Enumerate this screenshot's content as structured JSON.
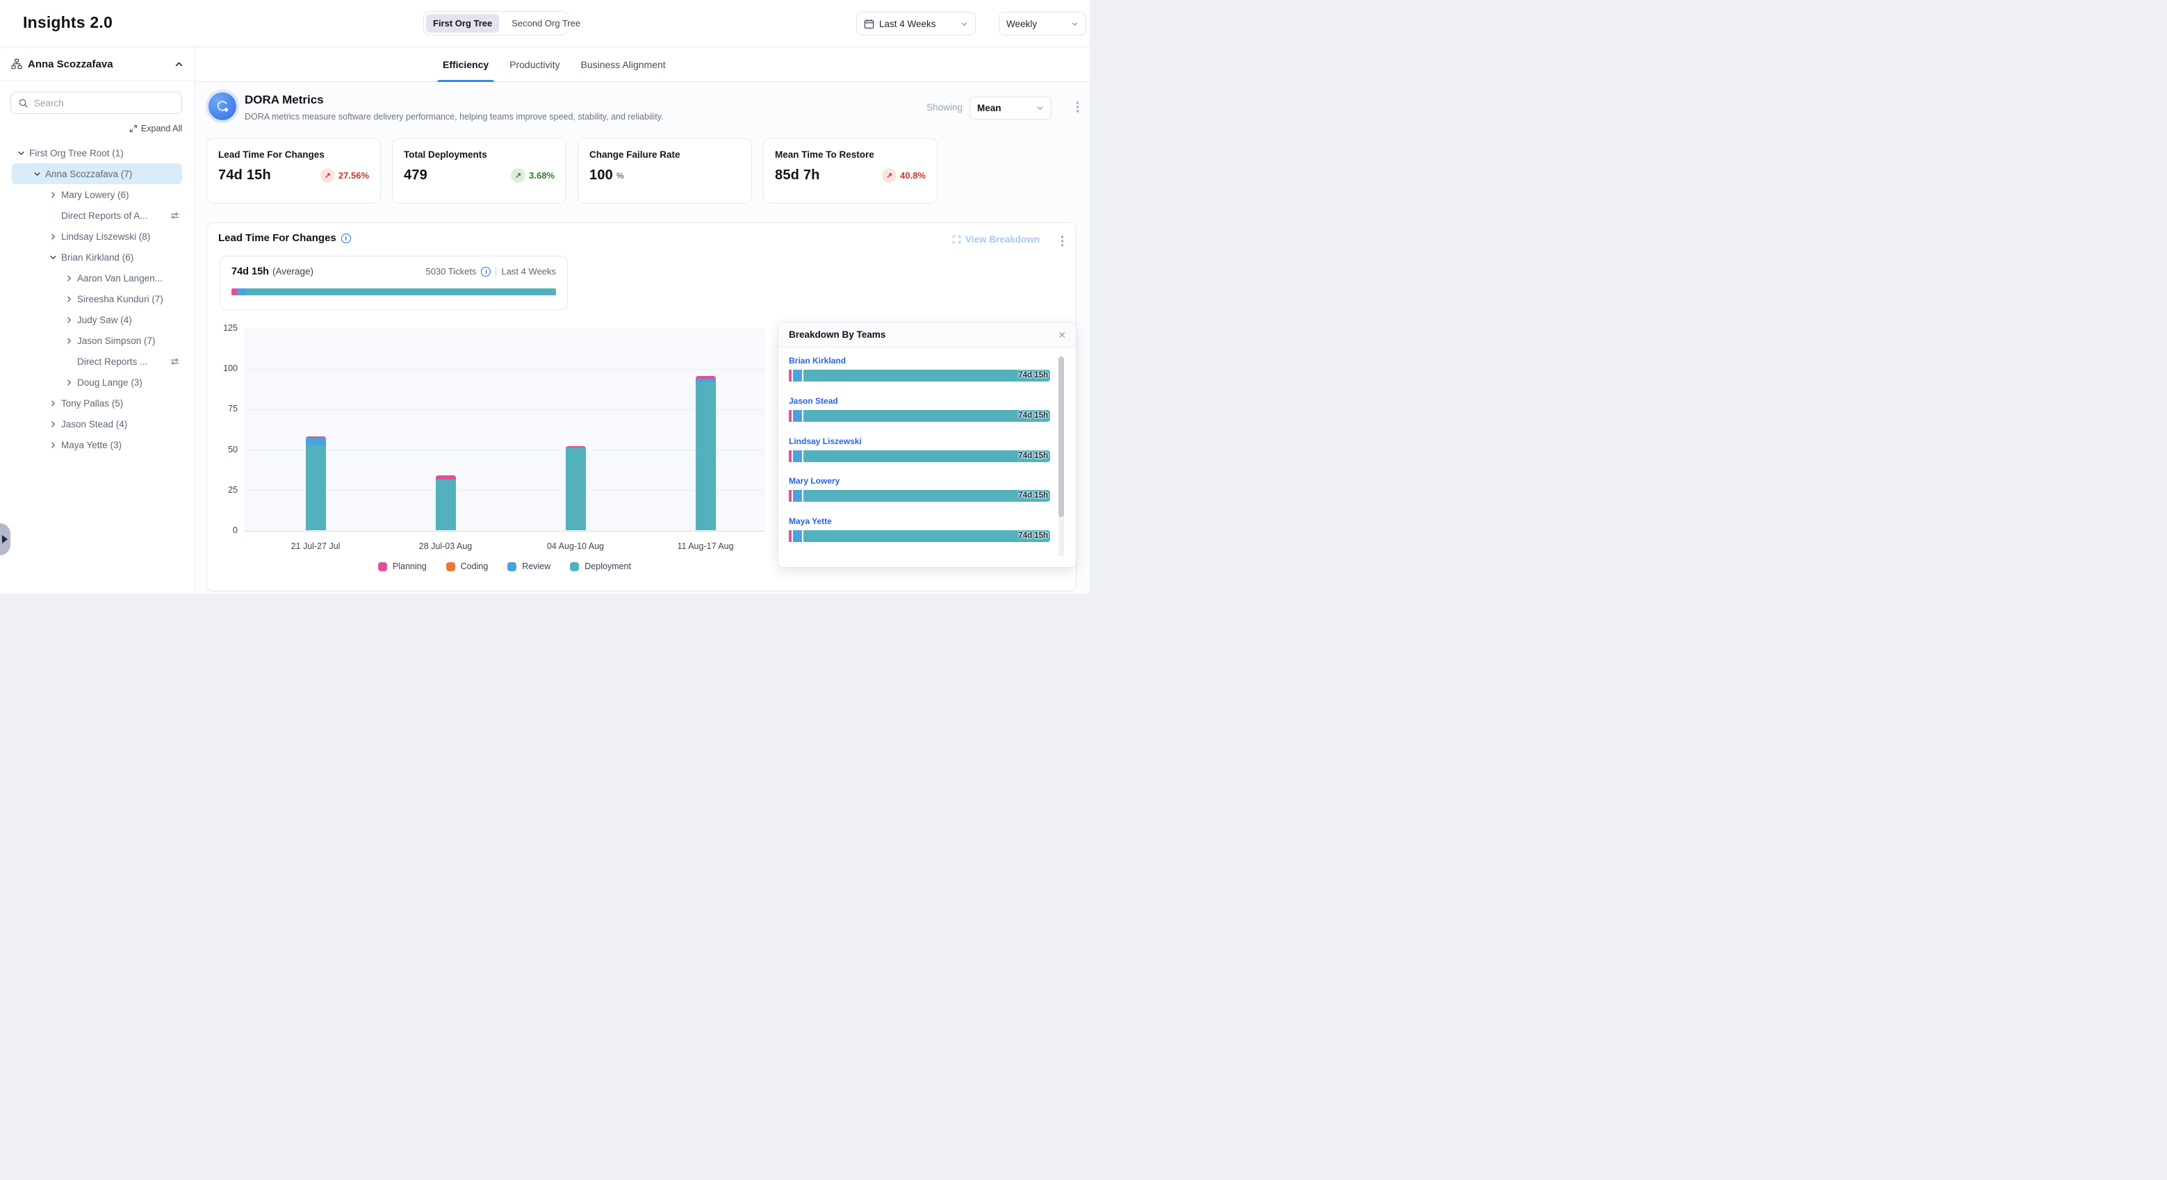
{
  "header": {
    "title": "Insights 2.0",
    "org_tree_toggle": {
      "options": [
        "First Org Tree",
        "Second Org Tree"
      ],
      "selected": "First Org Tree"
    },
    "date_range_label": "Last 4 Weeks",
    "granularity_label": "Weekly"
  },
  "sidebar": {
    "user": "Anna Scozzafava",
    "search_placeholder": "Search",
    "expand_all_label": "Expand All",
    "tree": [
      {
        "label": "First Org Tree Root (1)",
        "level": 0,
        "state": "expanded"
      },
      {
        "label": "Anna Scozzafava (7)",
        "level": 1,
        "state": "expanded",
        "selected": true
      },
      {
        "label": "Mary Lowery (6)",
        "level": 2,
        "state": "collapsed"
      },
      {
        "label": "Direct Reports of A...",
        "level": 2,
        "state": "none",
        "filter_icon": true
      },
      {
        "label": "Lindsay Liszewski (8)",
        "level": 2,
        "state": "collapsed"
      },
      {
        "label": "Brian Kirkland (6)",
        "level": 2,
        "state": "expanded"
      },
      {
        "label": "Aaron Van Langen...",
        "level": 3,
        "state": "collapsed"
      },
      {
        "label": "Sireesha Kunduri (7)",
        "level": 3,
        "state": "collapsed"
      },
      {
        "label": "Judy Saw (4)",
        "level": 3,
        "state": "collapsed"
      },
      {
        "label": "Jason Simpson (7)",
        "level": 3,
        "state": "collapsed"
      },
      {
        "label": "Direct Reports ...",
        "level": 3,
        "state": "none",
        "filter_icon": true
      },
      {
        "label": "Doug Lange (3)",
        "level": 3,
        "state": "collapsed"
      },
      {
        "label": "Tony Pallas (5)",
        "level": 2,
        "state": "collapsed"
      },
      {
        "label": "Jason Stead (4)",
        "level": 2,
        "state": "collapsed"
      },
      {
        "label": "Maya Yette (3)",
        "level": 2,
        "state": "collapsed"
      }
    ]
  },
  "tabs": {
    "items": [
      "Efficiency",
      "Productivity",
      "Business Alignment"
    ],
    "active": "Efficiency"
  },
  "dora": {
    "title": "DORA Metrics",
    "subtitle": "DORA metrics measure software delivery performance, helping teams improve speed, stability, and reliability.",
    "showing_label": "Showing",
    "showing_value": "Mean",
    "cards": [
      {
        "title": "Lead Time For Changes",
        "value": "74d 15h",
        "delta": "27.56%",
        "trend": "up",
        "sentiment": "negative"
      },
      {
        "title": "Total Deployments",
        "value": "479",
        "delta": "3.68%",
        "trend": "up",
        "sentiment": "positive"
      },
      {
        "title": "Change Failure Rate",
        "value": "100",
        "unit": "%"
      },
      {
        "title": "Mean Time To Restore",
        "value": "85d 7h",
        "delta": "40.8%",
        "trend": "up",
        "sentiment": "negative"
      }
    ]
  },
  "lead_time_panel": {
    "title": "Lead Time For Changes",
    "view_breakdown_label": "View Breakdown",
    "average": {
      "value": "74d 15h",
      "label": "(Average)",
      "tickets": "5030 Tickets",
      "period": "Last 4 Weeks",
      "bar_pcts": {
        "planning": 1.8,
        "review": 3.0,
        "deployment": 95.2
      }
    },
    "breakdown": {
      "title": "Breakdown By Teams",
      "teams": [
        {
          "name": "Brian Kirkland",
          "value": "74d 15h"
        },
        {
          "name": "Jason Stead",
          "value": "74d 15h"
        },
        {
          "name": "Lindsay Liszewski",
          "value": "74d 15h"
        },
        {
          "name": "Mary Lowery",
          "value": "74d 15h"
        },
        {
          "name": "Maya Yette",
          "value": "74d 15h"
        }
      ]
    }
  },
  "chart_data": {
    "type": "bar",
    "stacked": true,
    "title": "Lead Time For Changes",
    "categories": [
      "21 Jul-27 Jul",
      "28 Jul-03 Aug",
      "04 Aug-10 Aug",
      "11 Aug-17 Aug"
    ],
    "series": [
      {
        "name": "Planning",
        "color": "#E0519B",
        "values": [
          1,
          2.5,
          1,
          2
        ]
      },
      {
        "name": "Coding",
        "color": "#E8793B",
        "values": [
          0,
          0,
          0,
          0
        ]
      },
      {
        "name": "Review",
        "color": "#4BA3DC",
        "values": [
          4.5,
          0,
          0,
          2.2
        ]
      },
      {
        "name": "Deployment",
        "color": "#52B1BC",
        "values": [
          52.5,
          31.5,
          51,
          91.3
        ]
      }
    ],
    "ylim": [
      0,
      125
    ],
    "yticks": [
      0,
      25,
      50,
      75,
      100,
      125
    ],
    "legend_position": "bottom",
    "grid": true
  },
  "icons": {
    "trend_up": "↗",
    "close": "✕",
    "info": "i"
  }
}
